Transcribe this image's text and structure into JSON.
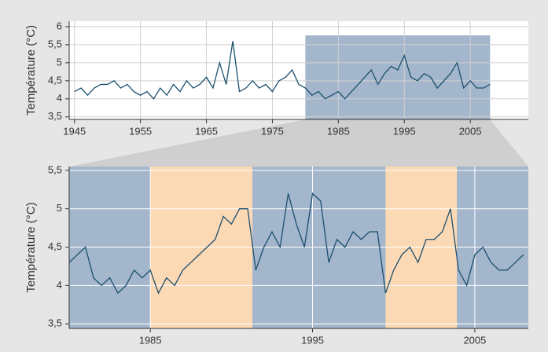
{
  "chart_data": [
    {
      "type": "line",
      "y_label": "Température (°C)",
      "x": [
        1945,
        1946,
        1947,
        1948,
        1949,
        1950,
        1951,
        1952,
        1953,
        1954,
        1955,
        1956,
        1957,
        1958,
        1959,
        1960,
        1961,
        1962,
        1963,
        1964,
        1965,
        1966,
        1967,
        1968,
        1969,
        1970,
        1971,
        1972,
        1973,
        1974,
        1975,
        1976,
        1977,
        1978,
        1979,
        1980,
        1981,
        1982,
        1983,
        1984,
        1985,
        1986,
        1987,
        1988,
        1989,
        1990,
        1991,
        1992,
        1993,
        1994,
        1995,
        1996,
        1997,
        1998,
        1999,
        2000,
        2001,
        2002,
        2003,
        2004,
        2005,
        2006,
        2007,
        2008
      ],
      "values": [
        4.2,
        4.3,
        4.1,
        4.3,
        4.4,
        4.4,
        4.5,
        4.3,
        4.4,
        4.2,
        4.1,
        4.2,
        4.0,
        4.3,
        4.1,
        4.4,
        4.2,
        4.5,
        4.3,
        4.4,
        4.6,
        4.3,
        5.0,
        4.4,
        5.6,
        4.2,
        4.3,
        4.5,
        4.3,
        4.4,
        4.2,
        4.5,
        4.6,
        4.8,
        4.4,
        4.3,
        4.1,
        4.2,
        4.0,
        4.1,
        4.2,
        4.0,
        4.2,
        4.4,
        4.6,
        4.8,
        4.4,
        4.7,
        4.9,
        4.8,
        5.2,
        4.6,
        4.5,
        4.7,
        4.6,
        4.3,
        4.5,
        4.7,
        5.0,
        4.3,
        4.5,
        4.3,
        4.3,
        4.4
      ],
      "color": "#1b4f6e",
      "xlim": [
        1944.2,
        2013.8
      ],
      "xticks": [
        1945,
        1955,
        1965,
        1975,
        1985,
        1995,
        2005
      ],
      "ylim": [
        3.43,
        6.15
      ],
      "yticks": [
        {
          "value": 3.5,
          "label": "3,5"
        },
        4,
        {
          "value": 4.5,
          "label": "4,5"
        },
        5,
        {
          "value": 5.5,
          "label": "5,5"
        },
        6
      ],
      "highlight": [
        1980,
        2008
      ],
      "highlight_color": "#a3b6cb",
      "grid": true
    },
    {
      "type": "line",
      "y_label": "Température (°C)",
      "x": [
        1980,
        1980.5,
        1981,
        1981.5,
        1982,
        1982.5,
        1983,
        1983.5,
        1984,
        1984.5,
        1985,
        1985.5,
        1986,
        1986.5,
        1987,
        1987.5,
        1988,
        1988.5,
        1989,
        1989.5,
        1990,
        1990.5,
        1991,
        1991.5,
        1992,
        1992.5,
        1993,
        1993.5,
        1994,
        1994.5,
        1995,
        1995.5,
        1996,
        1996.5,
        1997,
        1997.5,
        1998,
        1998.5,
        1999,
        1999.5,
        2000,
        2000.5,
        2001,
        2001.5,
        2002,
        2002.5,
        2003,
        2003.5,
        2004,
        2004.5,
        2005,
        2005.5,
        2006,
        2006.5,
        2007,
        2007.5,
        2008
      ],
      "values": [
        4.3,
        4.4,
        4.5,
        4.1,
        4.0,
        4.1,
        3.9,
        4.0,
        4.2,
        4.1,
        4.2,
        3.9,
        4.1,
        4.0,
        4.2,
        4.3,
        4.4,
        4.5,
        4.6,
        4.9,
        4.8,
        5.0,
        5.0,
        4.2,
        4.5,
        4.7,
        4.5,
        5.2,
        4.8,
        4.5,
        5.2,
        5.1,
        4.3,
        4.6,
        4.5,
        4.7,
        4.6,
        4.7,
        4.7,
        3.9,
        4.2,
        4.4,
        4.5,
        4.3,
        4.6,
        4.6,
        4.7,
        5.0,
        4.2,
        4.0,
        4.4,
        4.5,
        4.3,
        4.2,
        4.2,
        4.3,
        4.4
      ],
      "color": "#1b4f6e",
      "xlim": [
        1980,
        2008.3
      ],
      "xticks": [
        1985,
        1995,
        2005
      ],
      "ylim": [
        3.44,
        5.55
      ],
      "yticks": [
        {
          "value": 3.5,
          "label": "3,5"
        },
        4,
        {
          "value": 4.5,
          "label": "4,5"
        },
        5,
        {
          "value": 5.5,
          "label": "5,5"
        }
      ],
      "bands": [
        {
          "start": 1980,
          "end": 1985,
          "color": "#a3b6cb"
        },
        {
          "start": 1985,
          "end": 1991.3,
          "color": "#fcd9b5"
        },
        {
          "start": 1991.3,
          "end": 1999.5,
          "color": "#a3b6cb"
        },
        {
          "start": 1999.5,
          "end": 2003.9,
          "color": "#fcd9b5"
        },
        {
          "start": 2003.9,
          "end": 2008.3,
          "color": "#a3b6cb"
        }
      ],
      "grid": true
    }
  ]
}
